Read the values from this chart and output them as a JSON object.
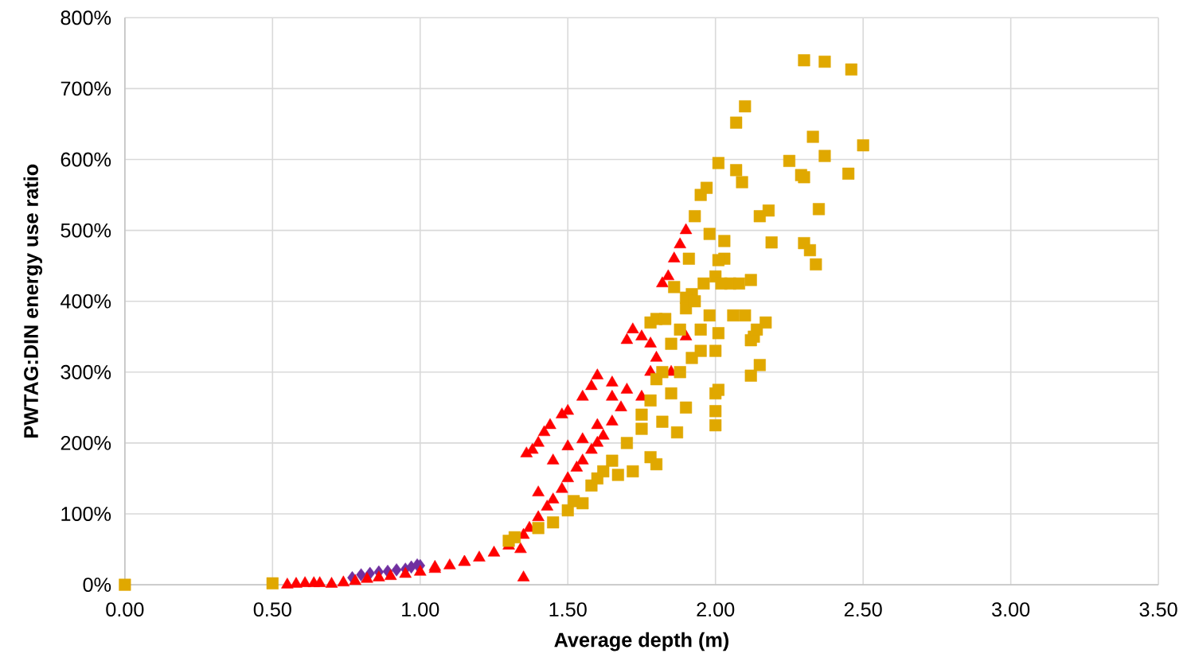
{
  "chart_data": {
    "type": "scatter",
    "xlabel": "Average depth (m)",
    "ylabel": "PWTAG:DIN energy use ratio",
    "xlim": [
      0,
      3.5
    ],
    "ylim": [
      0,
      800
    ],
    "xticks": [
      {
        "value": 0,
        "label": "0.00"
      },
      {
        "value": 0.5,
        "label": "0.50"
      },
      {
        "value": 1,
        "label": "1.00"
      },
      {
        "value": 1.5,
        "label": "1.50"
      },
      {
        "value": 2,
        "label": "2.00"
      },
      {
        "value": 2.5,
        "label": "2.50"
      },
      {
        "value": 3,
        "label": "3.00"
      },
      {
        "value": 3.5,
        "label": "3.50"
      }
    ],
    "yticks": [
      {
        "value": 0,
        "label": "0%"
      },
      {
        "value": 100,
        "label": "100%"
      },
      {
        "value": 200,
        "label": "200%"
      },
      {
        "value": 300,
        "label": "300%"
      },
      {
        "value": 400,
        "label": "400%"
      },
      {
        "value": 500,
        "label": "500%"
      },
      {
        "value": 600,
        "label": "600%"
      },
      {
        "value": 700,
        "label": "700%"
      },
      {
        "value": 800,
        "label": "800%"
      }
    ],
    "grid": true,
    "series": [
      {
        "color": "#7030a0",
        "marker": "diamond",
        "x": [
          0.77,
          0.8,
          0.83,
          0.86,
          0.89,
          0.92,
          0.95,
          0.97,
          0.99,
          1.0
        ],
        "values": [
          10,
          14,
          16,
          18,
          19,
          21,
          22,
          25,
          28,
          27
        ]
      },
      {
        "color": "#ff0000",
        "marker": "triangle",
        "x": [
          0.55,
          0.58,
          0.61,
          0.64,
          0.66,
          0.7,
          0.74,
          0.78,
          0.82,
          0.86,
          0.9,
          0.95,
          1.0,
          1.05,
          1.1,
          1.15,
          1.2,
          1.25,
          1.3,
          1.34,
          1.35,
          1.37,
          1.4,
          1.43,
          1.45,
          1.48,
          1.5,
          1.53,
          1.55,
          1.58,
          1.6,
          1.62,
          1.65,
          1.68,
          1.36,
          1.38,
          1.4,
          1.42,
          1.44,
          1.48,
          1.5,
          1.55,
          1.58,
          1.6,
          1.65,
          1.7,
          1.72,
          1.75,
          1.78,
          1.82,
          1.84,
          1.86,
          1.88,
          1.9,
          1.35,
          1.4,
          1.45,
          1.5,
          1.55,
          1.6,
          1.65,
          1.7,
          1.75,
          1.78,
          1.8,
          1.85,
          1.9,
          1.05,
          1.15
        ],
        "values": [
          0,
          1,
          2,
          2,
          2,
          1,
          3,
          5,
          8,
          10,
          12,
          15,
          18,
          22,
          27,
          32,
          38,
          45,
          55,
          50,
          70,
          80,
          95,
          110,
          120,
          135,
          150,
          165,
          175,
          190,
          200,
          210,
          230,
          250,
          185,
          190,
          200,
          215,
          225,
          240,
          245,
          265,
          280,
          295,
          285,
          345,
          360,
          350,
          300,
          425,
          435,
          460,
          480,
          500,
          10,
          130,
          175,
          195,
          205,
          225,
          265,
          275,
          265,
          340,
          320,
          300,
          350,
          25,
          32
        ]
      },
      {
        "color": "#e0a800",
        "marker": "square",
        "x": [
          0,
          0.5,
          1.3,
          1.32,
          1.4,
          1.45,
          1.5,
          1.52,
          1.55,
          1.58,
          1.6,
          1.62,
          1.65,
          1.67,
          1.7,
          1.72,
          1.75,
          1.78,
          1.8,
          1.82,
          1.85,
          1.87,
          1.88,
          1.9,
          1.92,
          1.95,
          2.0,
          2.0,
          2.0,
          2.01,
          1.75,
          1.78,
          1.8,
          1.82,
          1.85,
          1.88,
          1.9,
          1.92,
          1.95,
          1.98,
          2.0,
          2.01,
          1.78,
          1.8,
          1.83,
          1.86,
          1.9,
          1.93,
          1.96,
          2.0,
          2.02,
          2.05,
          2.08,
          2.1,
          2.12,
          2.06,
          2.03,
          2.01,
          1.98,
          2.03,
          1.91,
          1.93,
          1.95,
          1.97,
          2.01,
          2.07,
          2.09,
          2.07,
          2.1,
          2.12,
          2.15,
          2.12,
          2.13,
          2.14,
          2.17,
          2.15,
          2.18,
          2.19,
          2.25,
          2.29,
          2.3,
          2.3,
          2.32,
          2.34,
          2.33,
          2.35,
          2.37,
          2.3,
          2.37,
          2.46,
          2.45,
          2.5
        ],
        "values": [
          0,
          2,
          62,
          67,
          80,
          88,
          105,
          118,
          115,
          140,
          150,
          160,
          175,
          155,
          200,
          160,
          240,
          180,
          170,
          230,
          270,
          215,
          300,
          250,
          320,
          330,
          225,
          245,
          270,
          275,
          220,
          260,
          290,
          300,
          340,
          360,
          390,
          410,
          360,
          380,
          330,
          355,
          370,
          375,
          375,
          420,
          405,
          400,
          425,
          435,
          425,
          425,
          425,
          380,
          430,
          380,
          460,
          458,
          495,
          485,
          460,
          520,
          550,
          560,
          595,
          585,
          568,
          652,
          675,
          295,
          310,
          345,
          350,
          360,
          370,
          520,
          528,
          483,
          598,
          578,
          575,
          482,
          472,
          452,
          632,
          530,
          605,
          740,
          738,
          727,
          580,
          620
        ]
      }
    ]
  }
}
